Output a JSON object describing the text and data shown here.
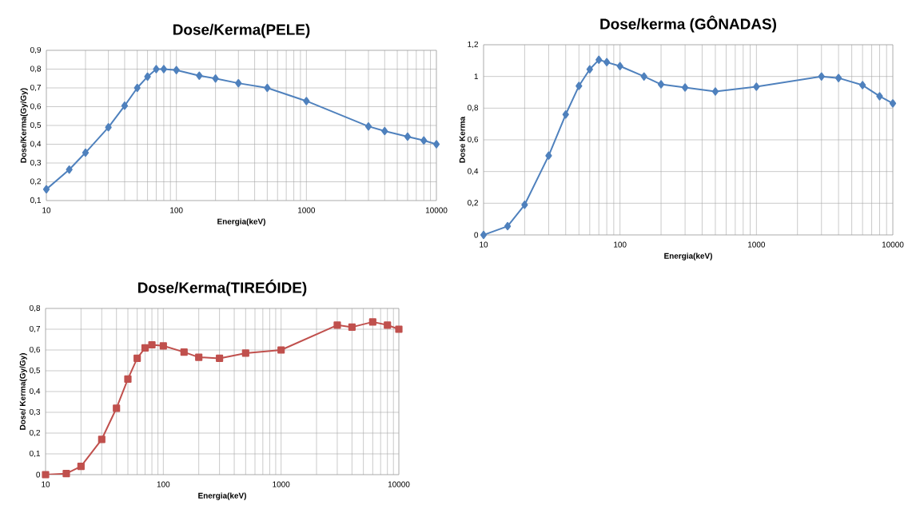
{
  "chart_data": [
    {
      "type": "line",
      "title": "Dose/Kerma(PELE)",
      "xlabel": "Energia(keV)",
      "ylabel": "Dose/Kerma(Gy/Gy)",
      "log": "x",
      "grid": true,
      "marker": "diamond",
      "line_style": "solid",
      "x": [
        10,
        15,
        20,
        30,
        40,
        50,
        60,
        70,
        80,
        100,
        150,
        200,
        300,
        500,
        1000,
        3000,
        4000,
        6000,
        8000,
        10000
      ],
      "series": [
        {
          "color": "#4f81bd",
          "values": [
            0.16,
            0.265,
            0.355,
            0.49,
            0.605,
            0.7,
            0.76,
            0.8,
            0.8,
            0.795,
            0.765,
            0.75,
            0.725,
            0.7,
            0.63,
            0.495,
            0.47,
            0.44,
            0.42,
            0.4
          ]
        }
      ],
      "xlim": [
        10,
        10000
      ],
      "xticks": [
        10,
        100,
        1000,
        10000
      ],
      "ylim": [
        0.1,
        0.9
      ],
      "yticks": [
        {
          "value": 0.1,
          "label": "0,1"
        },
        {
          "value": 0.2,
          "label": "0,2"
        },
        {
          "value": 0.3,
          "label": "0,3"
        },
        {
          "value": 0.4,
          "label": "0,4"
        },
        {
          "value": 0.5,
          "label": "0,5"
        },
        {
          "value": 0.6,
          "label": "0,6"
        },
        {
          "value": 0.7,
          "label": "0,7"
        },
        {
          "value": 0.8,
          "label": "0,8"
        },
        {
          "value": 0.9,
          "label": "0,9"
        }
      ]
    },
    {
      "type": "line",
      "title": "Dose/kerma (GÔNADAS)",
      "xlabel": "Energia(keV)",
      "ylabel": "Dose Kerma",
      "log": "x",
      "grid": true,
      "marker": "diamond",
      "line_style": "solid",
      "x": [
        10,
        15,
        20,
        30,
        40,
        50,
        60,
        70,
        80,
        100,
        150,
        200,
        300,
        500,
        1000,
        3000,
        4000,
        6000,
        8000,
        10000
      ],
      "series": [
        {
          "color": "#4f81bd",
          "values": [
            0,
            0.055,
            0.19,
            0.5,
            0.76,
            0.94,
            1.045,
            1.105,
            1.09,
            1.065,
            1.0,
            0.95,
            0.93,
            0.905,
            0.935,
            1.0,
            0.99,
            0.945,
            0.875,
            0.83
          ]
        }
      ],
      "xlim": [
        10,
        10000
      ],
      "xticks": [
        10,
        100,
        1000,
        10000
      ],
      "ylim": [
        0,
        1.2
      ],
      "yticks": [
        0,
        {
          "value": 0.2,
          "label": "0,2"
        },
        {
          "value": 0.4,
          "label": "0,4"
        },
        {
          "value": 0.6,
          "label": "0,6"
        },
        {
          "value": 0.8,
          "label": "0,8"
        },
        1,
        {
          "value": 1.2,
          "label": "1,2"
        }
      ]
    },
    {
      "type": "line",
      "title": "Dose/Kerma(TIREÓIDE)",
      "xlabel": "Energia(keV)",
      "ylabel": "Dose/ Kerma(Gy/Gy)",
      "log": "x",
      "grid": true,
      "marker": "square",
      "line_style": "solid",
      "x": [
        10,
        15,
        20,
        30,
        40,
        50,
        60,
        70,
        80,
        100,
        150,
        200,
        300,
        500,
        1000,
        3000,
        4000,
        6000,
        8000,
        10000
      ],
      "series": [
        {
          "color": "#c0504d",
          "values": [
            0,
            0.005,
            0.04,
            0.17,
            0.32,
            0.46,
            0.56,
            0.61,
            0.625,
            0.62,
            0.59,
            0.565,
            0.56,
            0.585,
            0.6,
            0.72,
            0.71,
            0.735,
            0.72,
            0.7
          ]
        }
      ],
      "xlim": [
        10,
        10000
      ],
      "xticks": [
        10,
        100,
        1000,
        10000
      ],
      "ylim": [
        0,
        0.8
      ],
      "yticks": [
        0,
        {
          "value": 0.1,
          "label": "0,1"
        },
        {
          "value": 0.2,
          "label": "0,2"
        },
        {
          "value": 0.3,
          "label": "0,3"
        },
        {
          "value": 0.4,
          "label": "0,4"
        },
        {
          "value": 0.5,
          "label": "0,5"
        },
        {
          "value": 0.6,
          "label": "0,6"
        },
        {
          "value": 0.7,
          "label": "0,7"
        },
        {
          "value": 0.8,
          "label": "0,8"
        }
      ]
    }
  ]
}
